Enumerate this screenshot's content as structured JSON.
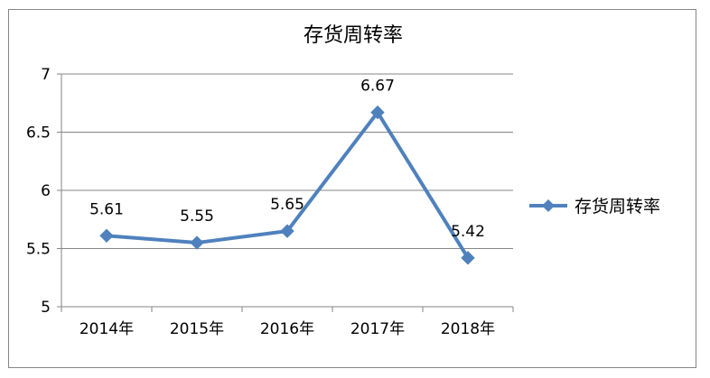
{
  "chart_data": {
    "type": "line",
    "title": "存货周转率",
    "categories": [
      "2014年",
      "2015年",
      "2016年",
      "2017年",
      "2018年"
    ],
    "series": [
      {
        "name": "存货周转率",
        "values": [
          5.61,
          5.55,
          5.65,
          6.67,
          5.42
        ],
        "color": "#4f81bd",
        "marker": "diamond"
      }
    ],
    "data_labels": [
      "5.61",
      "5.55",
      "5.65",
      "6.67",
      "5.42"
    ],
    "y_ticks": [
      "5",
      "5.5",
      "6",
      "6.5",
      "7"
    ],
    "ylim": [
      5,
      7
    ],
    "grid": true,
    "legend_position": "right"
  }
}
